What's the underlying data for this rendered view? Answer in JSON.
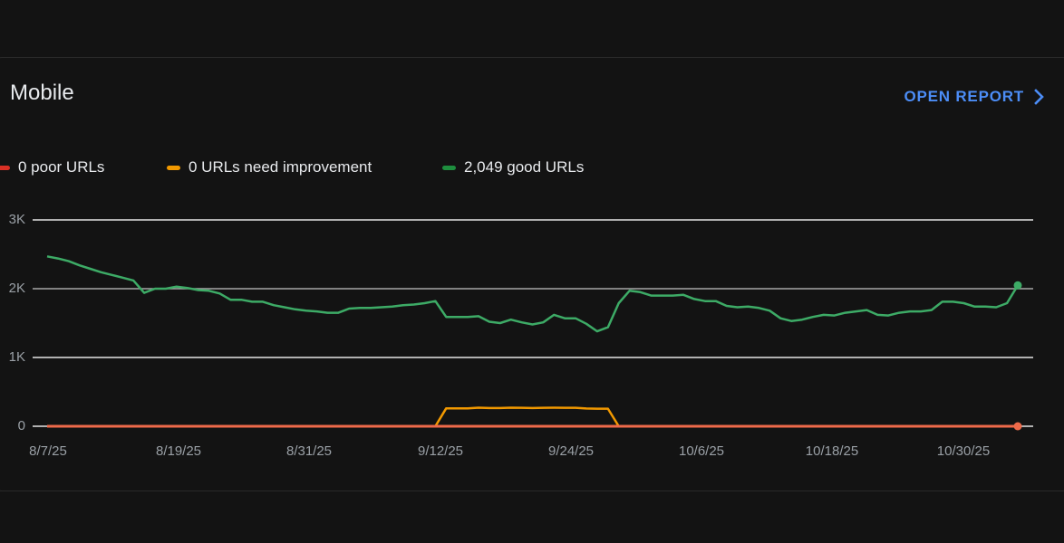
{
  "card": {
    "title": "Mobile",
    "open_report_label": "OPEN REPORT",
    "open_report_icon": "chevron-right-icon"
  },
  "legend": [
    {
      "label": "0 poor URLs",
      "color": "#d93025"
    },
    {
      "label": "0 URLs need improvement",
      "color": "#f29900"
    },
    {
      "label": "2,049 good URLs",
      "color": "#1e8e3e"
    }
  ],
  "colors": {
    "poor_line": "#ee6a4a",
    "needs_improvement_line": "#f29900",
    "good_line": "#3dab66",
    "accent": "#4c8df6",
    "background": "#131313",
    "gridline": "#e0e0e0"
  },
  "chart_data": {
    "type": "line",
    "title": "Mobile",
    "xlabel": "",
    "ylabel": "",
    "ylim": [
      0,
      3000
    ],
    "yticks": [
      "0",
      "1K",
      "2K",
      "3K"
    ],
    "xticks": [
      "8/7/25",
      "8/19/25",
      "8/31/25",
      "9/12/25",
      "9/24/25",
      "10/6/25",
      "10/18/25",
      "10/30/25"
    ],
    "grid": true,
    "legend_position": "top",
    "x_start": "8/7/25",
    "x_end": "11/4/25",
    "series": [
      {
        "name": "good URLs",
        "color": "#3dab66",
        "values": [
          2470,
          2440,
          2400,
          2340,
          2290,
          2240,
          2200,
          2160,
          2120,
          1940,
          2000,
          2000,
          2030,
          2010,
          1980,
          1970,
          1930,
          1840,
          1840,
          1810,
          1810,
          1760,
          1730,
          1700,
          1680,
          1670,
          1650,
          1650,
          1710,
          1720,
          1720,
          1730,
          1740,
          1760,
          1770,
          1790,
          1820,
          1590,
          1590,
          1590,
          1600,
          1520,
          1500,
          1550,
          1510,
          1480,
          1510,
          1620,
          1570,
          1570,
          1490,
          1380,
          1440,
          1790,
          1970,
          1950,
          1900,
          1900,
          1900,
          1910,
          1850,
          1820,
          1820,
          1750,
          1730,
          1740,
          1720,
          1680,
          1570,
          1530,
          1550,
          1590,
          1620,
          1610,
          1650,
          1670,
          1690,
          1620,
          1610,
          1650,
          1670,
          1670,
          1690,
          1810,
          1810,
          1790,
          1740,
          1740,
          1730,
          1790,
          2049
        ]
      },
      {
        "name": "URLs need improvement",
        "color": "#f29900",
        "values": [
          0,
          0,
          0,
          0,
          0,
          0,
          0,
          0,
          0,
          0,
          0,
          0,
          0,
          0,
          0,
          0,
          0,
          0,
          0,
          0,
          0,
          0,
          0,
          0,
          0,
          0,
          0,
          0,
          0,
          0,
          0,
          0,
          0,
          0,
          0,
          0,
          0,
          260,
          260,
          260,
          270,
          265,
          265,
          270,
          268,
          265,
          268,
          270,
          268,
          268,
          258,
          255,
          255,
          0,
          0,
          0,
          0,
          0,
          0,
          0,
          0,
          0,
          0,
          0,
          0,
          0,
          0,
          0,
          0,
          0,
          0,
          0,
          0,
          0,
          0,
          0,
          0,
          0,
          0,
          0,
          0,
          0,
          0,
          0,
          0,
          0,
          0,
          0,
          0,
          0,
          0
        ]
      },
      {
        "name": "poor URLs",
        "color": "#ee6a4a",
        "values": [
          0,
          0,
          0,
          0,
          0,
          0,
          0,
          0,
          0,
          0,
          0,
          0,
          0,
          0,
          0,
          0,
          0,
          0,
          0,
          0,
          0,
          0,
          0,
          0,
          0,
          0,
          0,
          0,
          0,
          0,
          0,
          0,
          0,
          0,
          0,
          0,
          0,
          0,
          0,
          0,
          0,
          0,
          0,
          0,
          0,
          0,
          0,
          0,
          0,
          0,
          0,
          0,
          0,
          0,
          0,
          0,
          0,
          0,
          0,
          0,
          0,
          0,
          0,
          0,
          0,
          0,
          0,
          0,
          0,
          0,
          0,
          0,
          0,
          0,
          0,
          0,
          0,
          0,
          0,
          0,
          0,
          0,
          0,
          0,
          0,
          0,
          0,
          0,
          0,
          0,
          0
        ]
      }
    ]
  }
}
